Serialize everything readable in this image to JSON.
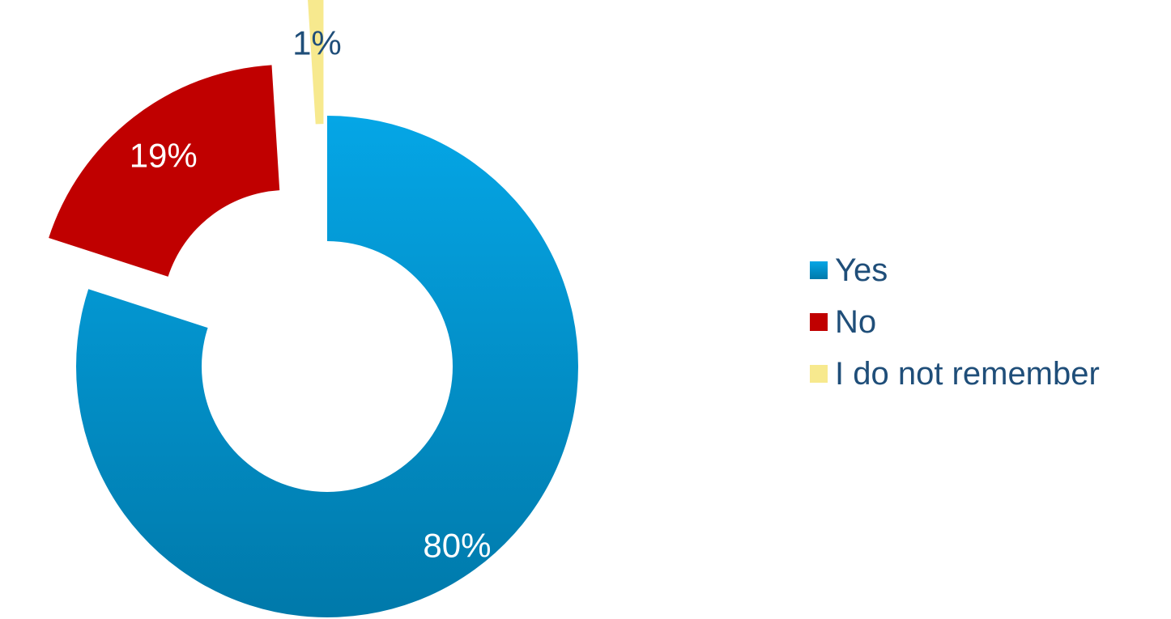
{
  "chart_data": {
    "type": "pie",
    "variant": "donut-exploded",
    "title": "",
    "categories": [
      "Yes",
      "No",
      "I do not remember"
    ],
    "values": [
      80,
      19,
      1
    ],
    "labels": [
      "80%",
      "19%",
      "1%"
    ],
    "colors": [
      "#049fdb",
      "#c00000",
      "#f7e98e"
    ],
    "legend_position": "right"
  }
}
